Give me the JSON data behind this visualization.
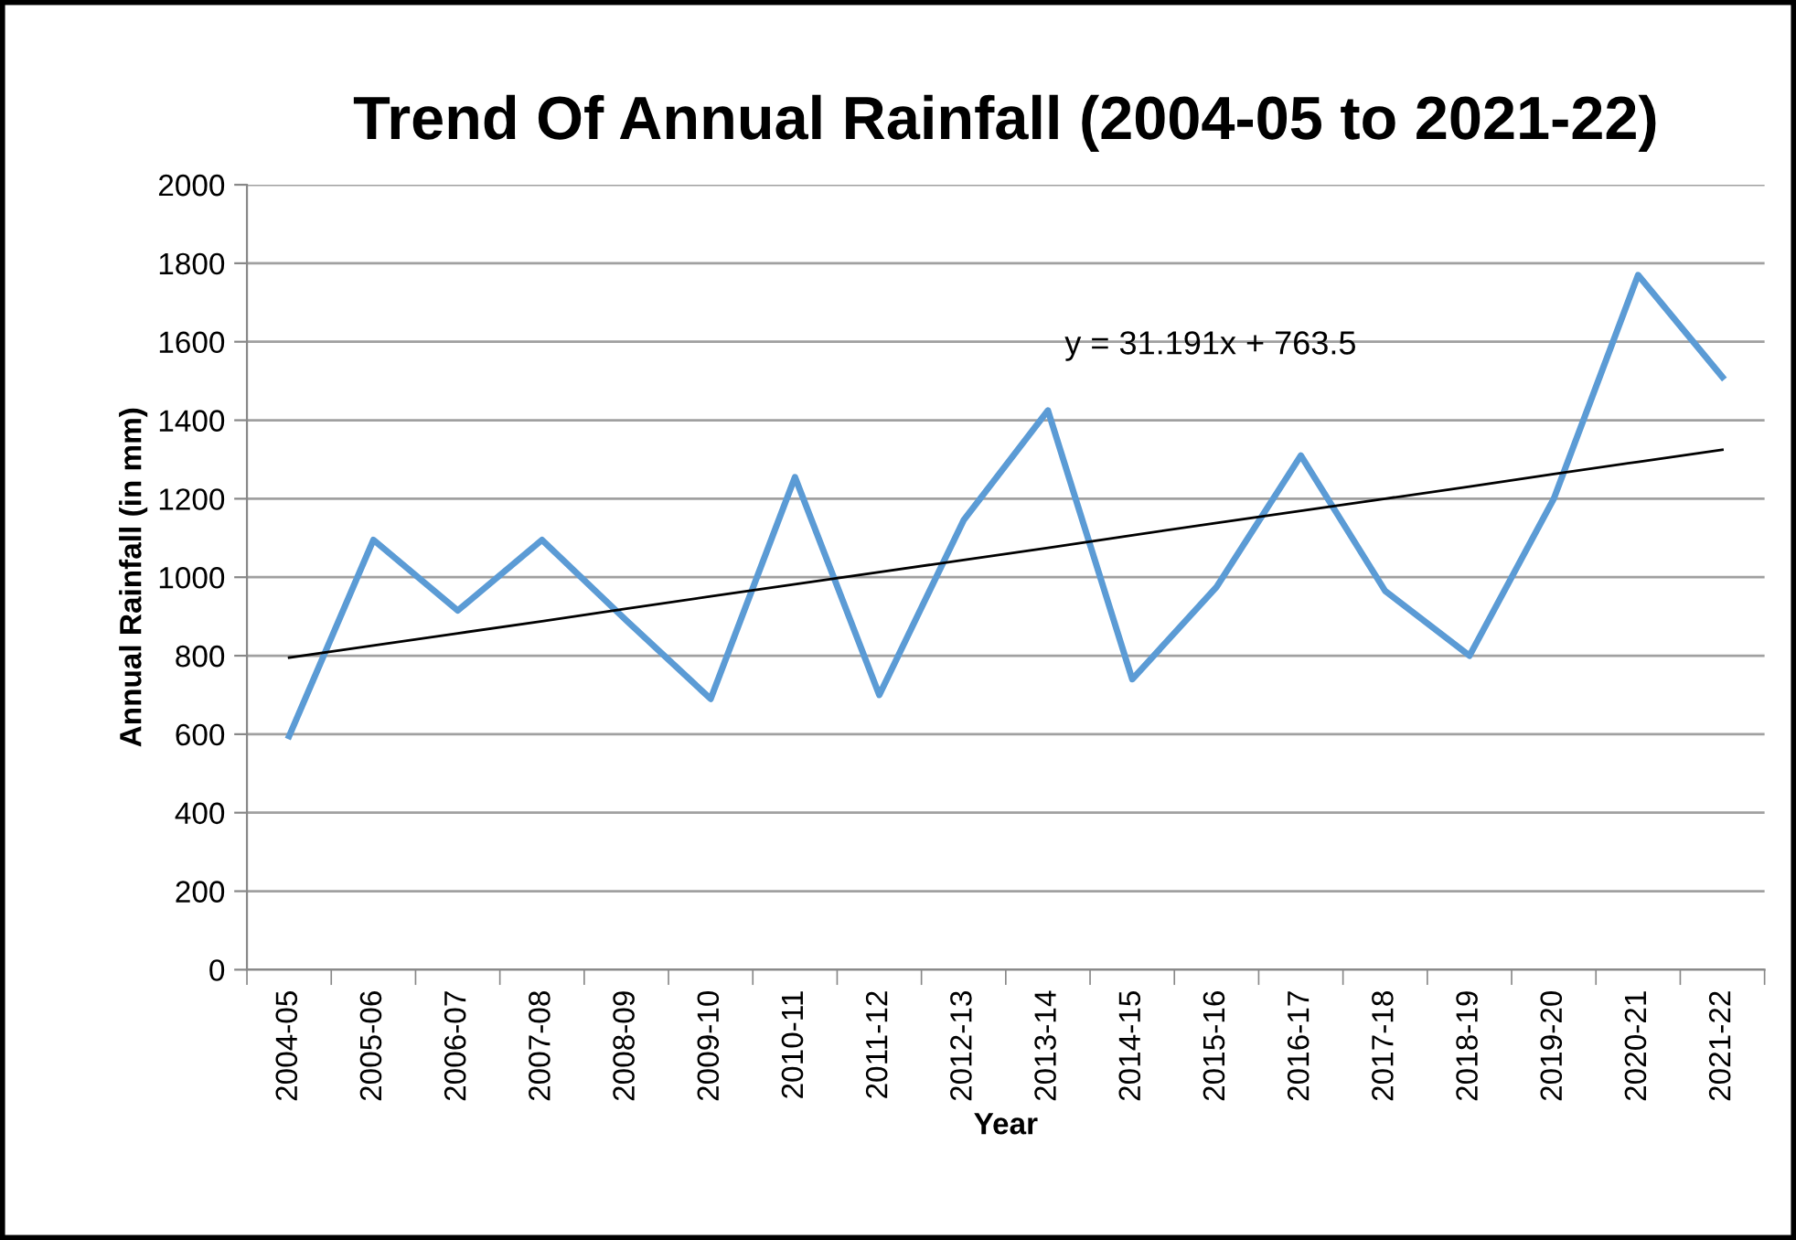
{
  "chart_data": {
    "type": "line",
    "title": "Trend Of Annual Rainfall (2004-05 to 2021-22)",
    "xlabel": "Year",
    "ylabel": "Annual Rainfall (in mm)",
    "categories": [
      "2004-05",
      "2005-06",
      "2006-07",
      "2007-08",
      "2008-09",
      "2009-10",
      "2010-11",
      "2011-12",
      "2012-13",
      "2013-14",
      "2014-15",
      "2015-16",
      "2016-17",
      "2017-18",
      "2018-19",
      "2019-20",
      "2020-21",
      "2021-22"
    ],
    "series": [
      {
        "color": "#5b9bd5",
        "values": [
          595,
          1095,
          915,
          1095,
          890,
          690,
          1255,
          700,
          1145,
          1425,
          740,
          975,
          1310,
          965,
          800,
          1200,
          1770,
          1510
        ]
      },
      {
        "type": "line",
        "color": "#000000",
        "values": [
          795,
          826,
          857,
          888,
          920,
          951,
          982,
          1013,
          1044,
          1075,
          1107,
          1138,
          1169,
          1200,
          1231,
          1263,
          1294,
          1325
        ]
      }
    ],
    "annotations": [
      "y = 31.191x + 763.5"
    ],
    "ylim": [
      0,
      2000
    ],
    "yticks": [
      0,
      200,
      400,
      600,
      800,
      1000,
      1200,
      1400,
      1600,
      1800,
      2000
    ],
    "grid": "y",
    "legend": false,
    "marker": "none",
    "line_style": "solid"
  }
}
